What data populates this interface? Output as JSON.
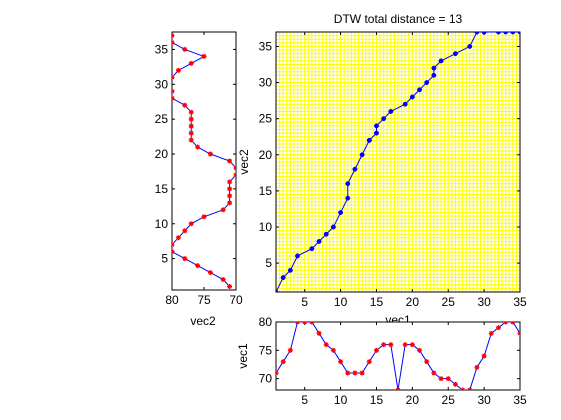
{
  "chart_data": [
    {
      "id": "left",
      "type": "line",
      "xlabel": "vec2",
      "ylabel": "",
      "title": "",
      "xlim": [
        80,
        70
      ],
      "ylim": [
        0.5,
        37.5
      ],
      "xticks": [
        80,
        75,
        70
      ],
      "yticks": [
        5,
        10,
        15,
        20,
        25,
        30,
        35
      ],
      "line_color": "#0000ff",
      "marker_color": "#ff0000",
      "series": [
        {
          "x": [
            71,
            72,
            74,
            76,
            78,
            80,
            80,
            79,
            78,
            77,
            75,
            72,
            71,
            71,
            71,
            71,
            70,
            70,
            71,
            74,
            76,
            77,
            77,
            77,
            77,
            77,
            78,
            80,
            80,
            81,
            80,
            79,
            77,
            75,
            78,
            80,
            80
          ],
          "y": [
            1,
            2,
            3,
            4,
            5,
            6,
            7,
            8,
            9,
            10,
            11,
            12,
            13,
            14,
            15,
            16,
            17,
            18,
            19,
            20,
            21,
            22,
            23,
            24,
            25,
            26,
            27,
            28,
            29,
            30,
            31,
            32,
            33,
            34,
            35,
            36,
            37
          ]
        }
      ]
    },
    {
      "id": "main",
      "type": "line",
      "title": "DTW total distance = 13",
      "xlabel": "vec1",
      "ylabel": "vec2",
      "xlim": [
        1,
        35
      ],
      "ylim": [
        1,
        37
      ],
      "xticks": [
        5,
        10,
        15,
        20,
        25,
        30,
        35
      ],
      "yticks": [
        5,
        10,
        15,
        20,
        25,
        30,
        35
      ],
      "grid": true,
      "background": "#ffffff",
      "grid_color": "#ffff00",
      "line_color": "#0000ff",
      "marker_color": "#0000ff",
      "series": [
        {
          "x": [
            1,
            2,
            3,
            4,
            6,
            7,
            8,
            9,
            10,
            11,
            11,
            12,
            13,
            14,
            14,
            15,
            15,
            16,
            17,
            19,
            20,
            21,
            22,
            23,
            23,
            24,
            26,
            28,
            29,
            30,
            30,
            32,
            33,
            34,
            35
          ],
          "y": [
            1,
            3,
            4,
            6,
            7,
            8,
            9,
            10,
            12,
            14,
            16,
            18,
            20,
            22,
            22,
            23,
            24,
            25,
            26,
            27,
            28,
            29,
            30,
            31,
            32,
            33,
            34,
            35,
            37,
            37,
            37,
            37,
            37,
            37,
            37
          ]
        }
      ]
    },
    {
      "id": "bottom",
      "type": "line",
      "xlabel": "",
      "ylabel": "vec1",
      "title": "",
      "xlim": [
        1,
        35
      ],
      "ylim": [
        68,
        80
      ],
      "xticks": [
        5,
        10,
        15,
        20,
        25,
        30,
        35
      ],
      "yticks": [
        70,
        75,
        80
      ],
      "line_color": "#0000ff",
      "marker_color": "#ff0000",
      "series": [
        {
          "x": [
            1,
            2,
            3,
            4,
            5,
            6,
            7,
            8,
            9,
            10,
            11,
            12,
            13,
            14,
            15,
            16,
            17,
            18,
            19,
            20,
            21,
            22,
            23,
            24,
            25,
            26,
            27,
            28,
            29,
            30,
            31,
            32,
            33,
            34,
            35
          ],
          "y": [
            71,
            73,
            75,
            80,
            80,
            80,
            78,
            76,
            75,
            73,
            71,
            71,
            71,
            73,
            75,
            76,
            76,
            68,
            76,
            76,
            75,
            73,
            71,
            70,
            70,
            69,
            68,
            68,
            72,
            74,
            78,
            79,
            80,
            80,
            78
          ]
        }
      ]
    }
  ]
}
